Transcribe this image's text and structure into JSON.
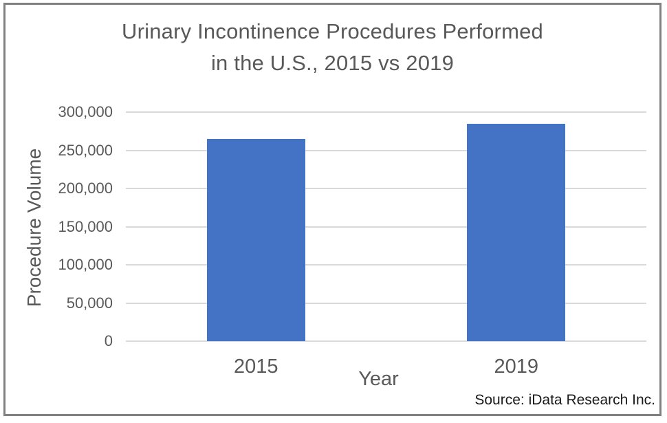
{
  "page": {
    "background": "#FFFFFF",
    "border_color": "#808080"
  },
  "chart_data": {
    "type": "bar",
    "title": "Urinary Incontinence Procedures Performed in the U.S., 2015 vs 2019",
    "title_lines": [
      "Urinary Incontinence Procedures Performed",
      "in the U.S., 2015 vs 2019"
    ],
    "categories": [
      "2015",
      "2019"
    ],
    "values": [
      265000,
      285000
    ],
    "xlabel": "Year",
    "ylabel": "Procedure Volume",
    "ylim": [
      0,
      300000
    ],
    "ytick_step": 50000,
    "ytick_labels": [
      "0",
      "50,000",
      "100,000",
      "150,000",
      "200,000",
      "250,000",
      "300,000"
    ],
    "grid": true,
    "legend": false,
    "source": "Source: iData Research Inc.",
    "bar_color": "#4472C4",
    "gridline_color": "#D9D9D9",
    "text_color": "#595959",
    "source_color": "#1A1A1A"
  }
}
